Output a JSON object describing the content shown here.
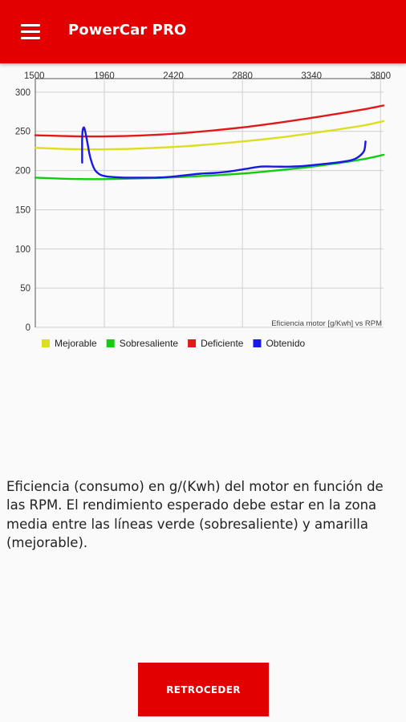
{
  "app": {
    "title": "PowerCar PRO"
  },
  "chart_data": {
    "type": "line",
    "title": "Eficiencia motor [g/Kwh] vs RPM",
    "x_ticks": [
      1500,
      1960,
      2420,
      2880,
      3340,
      3800
    ],
    "y_ticks": [
      0,
      50,
      100,
      150,
      200,
      250,
      300
    ],
    "xlim": [
      1500,
      3820
    ],
    "ylim": [
      0,
      305
    ],
    "grid": true,
    "legend_position": "bottom-left",
    "series": [
      {
        "name": "Mejorable",
        "color": "#dddd22",
        "x": [
          1500,
          1700,
          1900,
          2100,
          2300,
          2500,
          2700,
          2900,
          3100,
          3300,
          3500,
          3700,
          3820
        ],
        "y": [
          229,
          227.5,
          227,
          227.5,
          229,
          231,
          234,
          237.5,
          241.5,
          246.5,
          252,
          258,
          263
        ]
      },
      {
        "name": "Sobresaliente",
        "color": "#11cc11",
        "x": [
          1500,
          1700,
          1900,
          2100,
          2300,
          2500,
          2700,
          2900,
          3100,
          3300,
          3500,
          3700,
          3820
        ],
        "y": [
          191,
          189.5,
          189,
          189.5,
          190.5,
          192,
          194,
          196.5,
          200,
          204,
          209,
          215,
          220
        ]
      },
      {
        "name": "Deficiente",
        "color": "#e01a1a",
        "x": [
          1500,
          1700,
          1900,
          2100,
          2300,
          2500,
          2700,
          2900,
          3100,
          3300,
          3500,
          3700,
          3820
        ],
        "y": [
          245,
          244,
          243.5,
          244,
          245.5,
          248,
          251.5,
          255.5,
          260.5,
          266,
          272,
          278.5,
          283
        ]
      },
      {
        "name": "Obtenido",
        "color": "#1818e8",
        "x": [
          1812,
          1812,
          1815,
          1822,
          1830,
          1845,
          1860,
          1880,
          1900,
          1930,
          1960,
          2000,
          2100,
          2200,
          2300,
          2400,
          2500,
          2600,
          2700,
          2800,
          2900,
          3000,
          3100,
          3200,
          3300,
          3400,
          3500,
          3600,
          3650,
          3690,
          3700
        ],
        "y": [
          210,
          240,
          250,
          255,
          252,
          238,
          222,
          208,
          200,
          195,
          193,
          192,
          191,
          191,
          191,
          192,
          194,
          196,
          197,
          199,
          202,
          205,
          205,
          205,
          206,
          208,
          210,
          213,
          217,
          225,
          237
        ]
      }
    ]
  },
  "description": "Eficiencia (consumo) en g/(Kwh) del motor en función de las RPM. El rendimiento esperado debe estar en la zona media entre las líneas verde (sobresaliente) y amarilla (mejorable).",
  "buttons": {
    "back_label": "RETROCEDER"
  },
  "colors": {
    "accent": "#e30000",
    "background": "#fafafa"
  },
  "icons": {
    "menu": "hamburger-menu-icon"
  }
}
